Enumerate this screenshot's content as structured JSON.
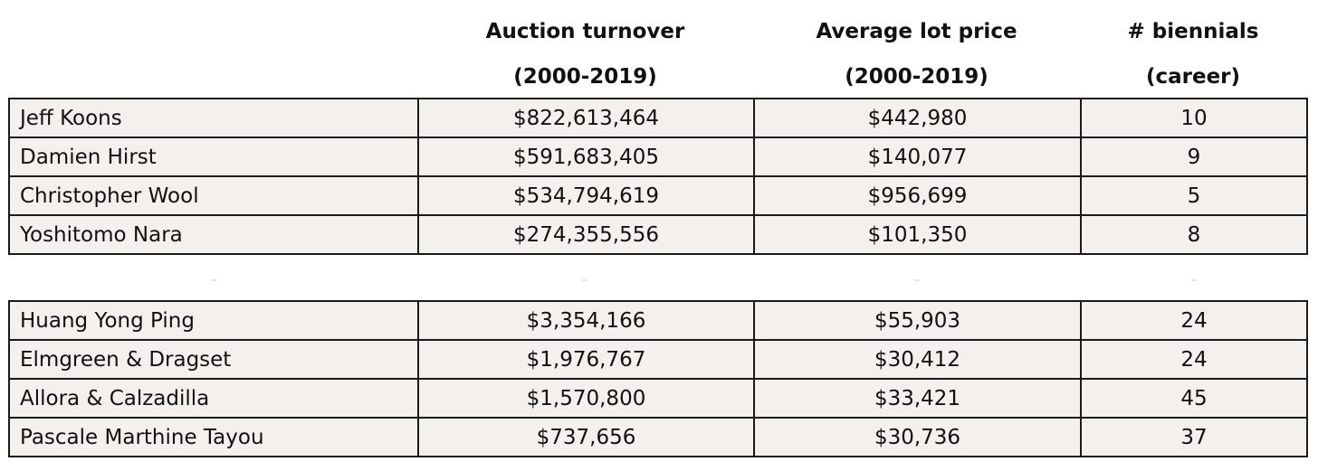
{
  "header": {
    "col1_line1": "Auction turnover",
    "col1_line2": "(2000-2019)",
    "col2_line1": "Average lot price",
    "col2_line2": "(2000-2019)",
    "col3_line1": "# biennials",
    "col3_line2": "(career)"
  },
  "top_rows": [
    {
      "name": "Jeff Koons",
      "turnover": "$822,613,464",
      "avg_price": "$442,980",
      "biennials": "10"
    },
    {
      "name": "Damien Hirst",
      "turnover": "$591,683,405",
      "avg_price": "$140,077",
      "biennials": "9"
    },
    {
      "name": "Christopher Wool",
      "turnover": "$534,794,619",
      "avg_price": "$956,699",
      "biennials": "5"
    },
    {
      "name": "Yoshitomo Nara",
      "turnover": "$274,355,556",
      "avg_price": "$101,350",
      "biennials": "8"
    }
  ],
  "bottom_rows": [
    {
      "name": "Huang Yong Ping",
      "turnover": "$3,354,166",
      "avg_price": "$55,903",
      "biennials": "24"
    },
    {
      "name": "Elmgreen & Dragset",
      "turnover": "$1,976,767",
      "avg_price": "$30,412",
      "biennials": "24"
    },
    {
      "name": "Allora & Calzadilla",
      "turnover": "$1,570,800",
      "avg_price": "$33,421",
      "biennials": "45"
    },
    {
      "name": "Pascale Marthine Tayou",
      "turnover": "$737,656",
      "avg_price": "$30,736",
      "biennials": "37"
    }
  ]
}
